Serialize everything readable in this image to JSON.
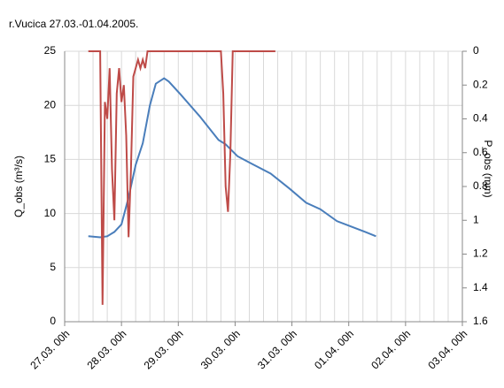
{
  "chart_data": {
    "type": "line",
    "title": "r.Vucica 27.03.-01.04.2005.",
    "ylabel": "Q_obs (m³/s)",
    "y2label": "P_obs (mm)",
    "xlim": [
      0,
      144
    ],
    "xticks": [
      {
        "value": 0,
        "label": "27.03. 00h"
      },
      {
        "value": 24,
        "label": "28.03. 00h"
      },
      {
        "value": 48,
        "label": "29.03. 00h"
      },
      {
        "value": 72,
        "label": "30.03. 00h"
      },
      {
        "value": 96,
        "label": "31.03. 00h"
      },
      {
        "value": 120,
        "label": "01.04. 00h"
      },
      {
        "value": 144,
        "label": "02.04. 00h"
      },
      {
        "value": 168,
        "label": "03.04. 00h"
      }
    ],
    "xgrid_step": 6,
    "ylim": [
      0,
      25
    ],
    "yticks": [
      0,
      5,
      10,
      15,
      20,
      25
    ],
    "y2lim": [
      0,
      1.6
    ],
    "y2ticks": [
      0,
      0.2,
      0.4,
      0.6,
      0.8,
      1,
      1.2,
      1.4,
      1.6
    ],
    "y2_inverted": true,
    "grid": true,
    "series": [
      {
        "name": "Q_obs",
        "color": "#4a7ebb",
        "x": [
          10,
          15,
          18,
          21,
          24,
          27,
          30,
          33,
          36,
          38.5,
          42,
          44,
          49,
          57,
          65,
          68,
          73,
          79,
          87,
          95,
          102,
          108,
          115,
          121,
          127,
          131.5
        ],
        "values": [
          7.9,
          7.8,
          7.9,
          8.3,
          9.0,
          11.5,
          14.5,
          16.5,
          20,
          22,
          22.5,
          22.2,
          21,
          19,
          16.8,
          16.4,
          15.3,
          14.6,
          13.7,
          12.3,
          11,
          10.4,
          9.3,
          8.8,
          8.3,
          7.9
        ]
      },
      {
        "name": "P_obs",
        "color": "#be4b48",
        "axis": "y2",
        "x": [
          10,
          15,
          16,
          17,
          18,
          19,
          20,
          21,
          22,
          23,
          24,
          25,
          26,
          27,
          28,
          29,
          30,
          31,
          32,
          33,
          34,
          35,
          66,
          67,
          68,
          69,
          70,
          71,
          89
        ],
        "values": [
          0,
          0,
          1.5,
          0.3,
          0.4,
          0.1,
          0.7,
          1.0,
          0.25,
          0.1,
          0.3,
          0.2,
          0.5,
          1.1,
          0.7,
          0.15,
          0.1,
          0.05,
          0.1,
          0.05,
          0.1,
          0,
          0,
          0.25,
          0.8,
          0.95,
          0.6,
          0,
          0
        ]
      }
    ]
  }
}
